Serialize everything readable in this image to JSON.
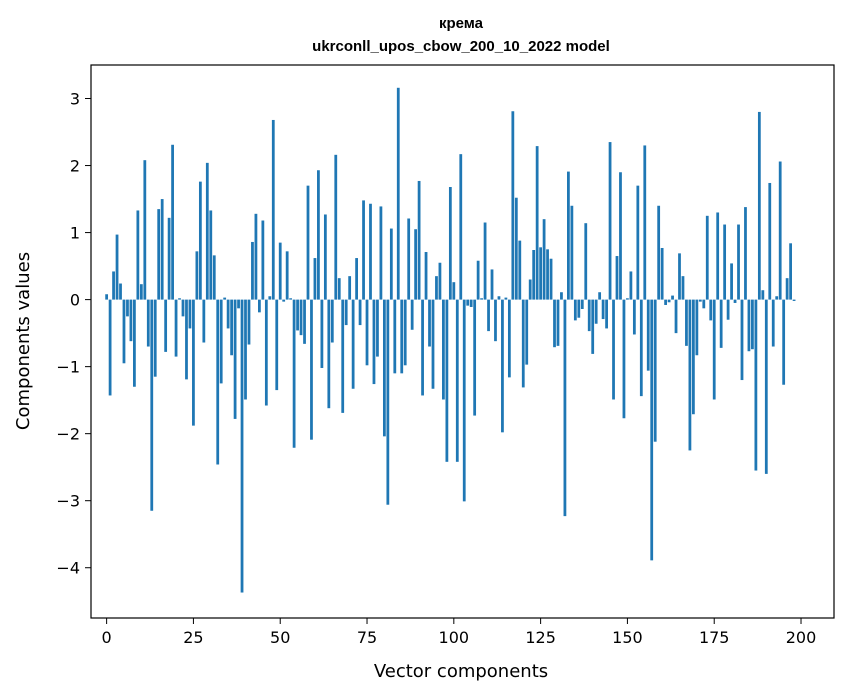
{
  "chart_data": {
    "type": "bar",
    "title": "крема",
    "subtitle": "ukrconll_upos_cbow_200_10_2022 model",
    "xlabel": "Vector components",
    "ylabel": "Components values",
    "xlim": [
      -4.5,
      209.5
    ],
    "ylim": [
      -4.75,
      3.5
    ],
    "xticks": [
      0,
      25,
      50,
      75,
      100,
      125,
      150,
      175,
      200
    ],
    "yticks": [
      -4,
      -3,
      -2,
      -1,
      0,
      1,
      2,
      3
    ],
    "bar_color": "#1f77b4",
    "grid": false,
    "legend": "none",
    "values": [
      0.08,
      -1.43,
      0.42,
      0.97,
      0.24,
      -0.95,
      -0.25,
      -0.62,
      -1.3,
      1.33,
      0.23,
      2.08,
      -0.7,
      -3.15,
      -1.15,
      1.35,
      1.5,
      -0.78,
      1.22,
      2.31,
      -0.85,
      0.02,
      -0.25,
      -1.19,
      -0.43,
      -1.88,
      0.72,
      1.76,
      -0.64,
      2.04,
      1.33,
      0.66,
      -2.46,
      -1.25,
      0.03,
      -0.43,
      -0.83,
      -1.78,
      -0.13,
      -4.37,
      -1.49,
      -0.67,
      0.86,
      1.28,
      -0.19,
      1.18,
      -1.58,
      0.05,
      2.68,
      -1.35,
      0.85,
      -0.03,
      0.72,
      0.02,
      -2.21,
      -0.46,
      -0.53,
      -0.66,
      1.7,
      -2.09,
      0.62,
      1.93,
      -1.02,
      1.27,
      -1.62,
      -0.64,
      2.16,
      0.32,
      -1.69,
      -0.38,
      0.35,
      -1.33,
      0.62,
      -0.38,
      1.48,
      -0.98,
      1.43,
      -1.26,
      -0.85,
      1.39,
      -2.04,
      -3.06,
      1.06,
      -1.1,
      3.16,
      -1.1,
      -0.98,
      1.21,
      -0.45,
      1.05,
      1.77,
      -1.43,
      0.71,
      -0.7,
      -1.33,
      0.35,
      0.55,
      -1.49,
      -2.42,
      1.68,
      0.26,
      -2.42,
      2.17,
      -3.01,
      -0.09,
      -0.11,
      -1.73,
      0.58,
      0.02,
      1.15,
      -0.47,
      0.45,
      -0.62,
      0.05,
      -1.98,
      0.03,
      -1.16,
      2.81,
      1.52,
      0.88,
      -1.31,
      -0.97,
      0.3,
      0.74,
      2.29,
      0.78,
      1.2,
      0.75,
      0.61,
      -0.71,
      -0.69,
      0.11,
      -3.23,
      1.91,
      1.4,
      -0.31,
      -0.27,
      -0.14,
      1.14,
      -0.47,
      -0.81,
      -0.36,
      0.11,
      -0.29,
      -0.43,
      2.35,
      -1.49,
      0.65,
      1.9,
      -1.77,
      0.02,
      0.42,
      -0.52,
      1.7,
      -1.44,
      2.3,
      -1.06,
      -3.89,
      -2.12,
      1.4,
      0.77,
      -0.08,
      -0.04,
      0.06,
      -0.5,
      0.69,
      0.35,
      -0.69,
      -2.25,
      -1.71,
      -0.83,
      -0.03,
      -0.13,
      1.25,
      -0.31,
      -1.49,
      1.3,
      -0.72,
      1.12,
      -0.3,
      0.54,
      -0.05,
      1.12,
      -1.2,
      1.38,
      -0.77,
      -0.74,
      -2.55,
      2.8,
      0.14,
      -2.6,
      1.74,
      -0.7,
      0.05,
      2.06,
      -1.27,
      0.32,
      0.84,
      -0.02
    ]
  }
}
